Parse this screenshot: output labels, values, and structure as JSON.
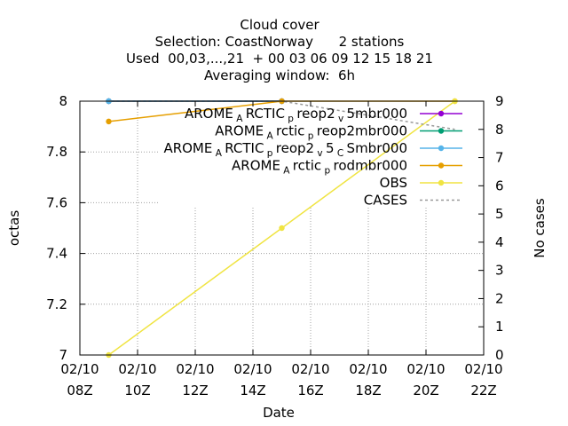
{
  "chart_data": {
    "type": "line",
    "title": {
      "line1": "Cloud cover",
      "line2": "Selection: CoastNorway      2 stations",
      "line3": "Used  00,03,...,21  + 00 03 06 09 12 15 18 21",
      "line4": "Averaging window:  6h"
    },
    "xlabel": "Date",
    "ylabel": "octas",
    "y2label": "No cases",
    "x_ticks": [
      {
        "t": 8,
        "l1": "02/10",
        "l2": "08Z"
      },
      {
        "t": 10,
        "l1": "02/10",
        "l2": "10Z"
      },
      {
        "t": 12,
        "l1": "02/10",
        "l2": "12Z"
      },
      {
        "t": 14,
        "l1": "02/10",
        "l2": "14Z"
      },
      {
        "t": 16,
        "l1": "02/10",
        "l2": "16Z"
      },
      {
        "t": 18,
        "l1": "02/10",
        "l2": "18Z"
      },
      {
        "t": 20,
        "l1": "02/10",
        "l2": "20Z"
      },
      {
        "t": 22,
        "l1": "02/10",
        "l2": "22Z"
      }
    ],
    "xlim": [
      8,
      22
    ],
    "ylim": [
      7,
      8
    ],
    "y_ticks": [
      7,
      7.2,
      7.4,
      7.6,
      7.8,
      8
    ],
    "y2lim": [
      0,
      9
    ],
    "y2_ticks": [
      0,
      1,
      2,
      3,
      4,
      5,
      6,
      7,
      8,
      9
    ],
    "grid": true,
    "legend_position": "top-right",
    "series": [
      {
        "name": "AROME_ARCTIC_preop2_v5mbr000",
        "legend": {
          "pre": "AROME",
          "sub1": "A",
          "mid": "RCTIC",
          "sub2": "p",
          "mid2": "reop2",
          "sub3": "v",
          "post": "5mbr000"
        },
        "color": "#9400d3",
        "axis": "y1",
        "x": [
          9,
          15
        ],
        "y": [
          8,
          8
        ]
      },
      {
        "name": "AROME_Arctic_preop2mbr000",
        "legend": {
          "pre": "AROME",
          "sub1": "A",
          "mid": "rctic",
          "sub2": "p",
          "post": "reop2mbr000"
        },
        "color": "#009e73",
        "axis": "y1",
        "x": [
          9,
          15
        ],
        "y": [
          8,
          8
        ]
      },
      {
        "name": "AROME_ARCTIC_preop2_v5_CSmbr000",
        "legend": {
          "pre": "AROME",
          "sub1": "A",
          "mid": "RCTIC",
          "sub2": "p",
          "mid2": "reop2",
          "sub3": "v",
          "mid3": "5",
          "sub4": "C",
          "post": "Smbr000"
        },
        "color": "#56b4e9",
        "axis": "y1",
        "x": [
          9
        ],
        "y": [
          8
        ]
      },
      {
        "name": "AROME_Arctic_prodmbr000",
        "legend": {
          "pre": "AROME",
          "sub1": "A",
          "mid": "rctic",
          "sub2": "p",
          "post": "rodmbr000"
        },
        "color": "#e69f00",
        "axis": "y1",
        "x": [
          9,
          15,
          21
        ],
        "y": [
          7.92,
          8,
          8
        ]
      },
      {
        "name": "OBS",
        "legend": {
          "pre": "OBS"
        },
        "color": "#f0e442",
        "axis": "y1",
        "x": [
          9,
          15,
          21
        ],
        "y": [
          7,
          7.5,
          8
        ]
      },
      {
        "name": "CASES",
        "legend": {
          "pre": "CASES"
        },
        "color": "#999999",
        "dashed": true,
        "axis": "y2",
        "x": [
          9,
          15,
          21
        ],
        "y": [
          9,
          9,
          8
        ]
      }
    ]
  }
}
